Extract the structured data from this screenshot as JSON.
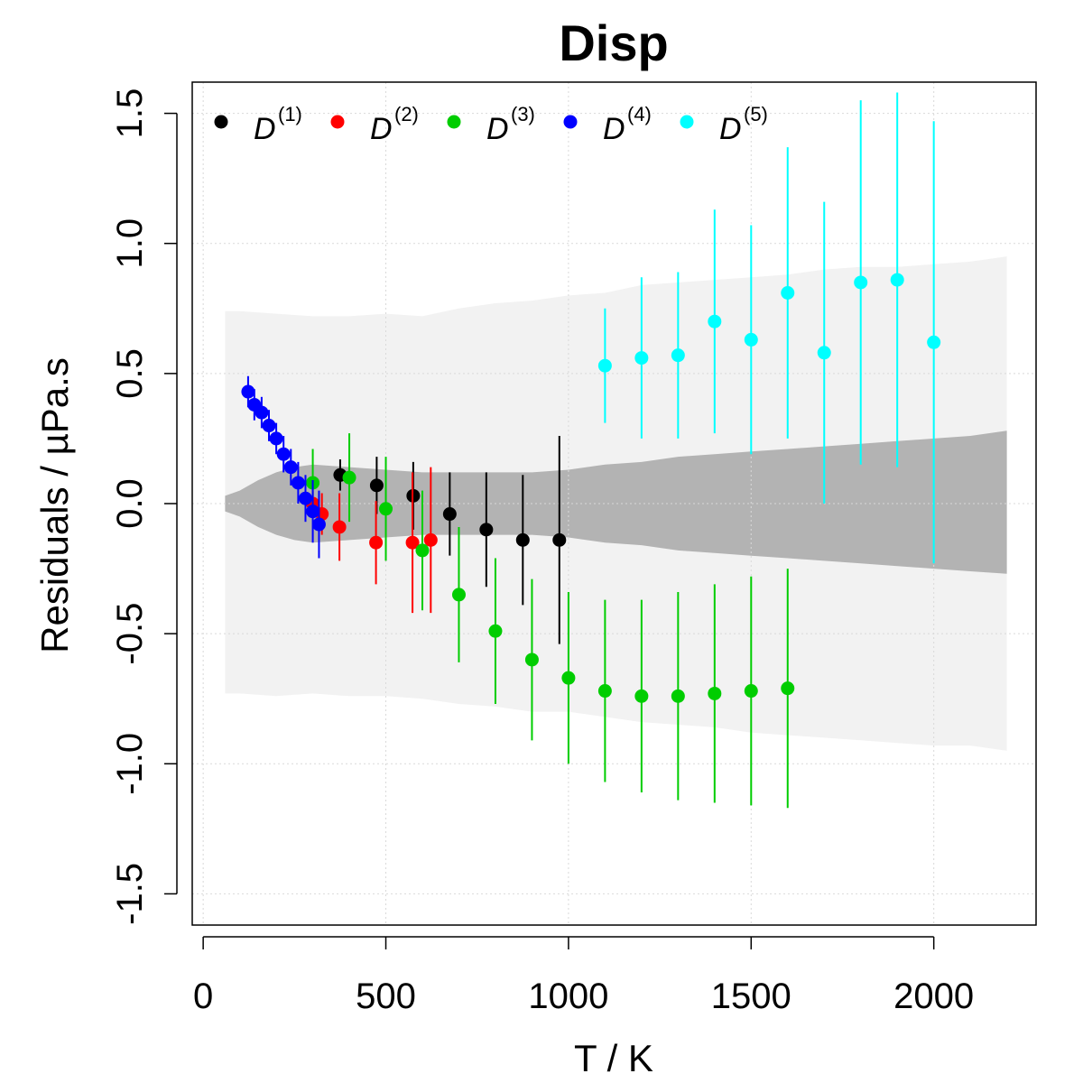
{
  "chart_data": {
    "type": "scatter",
    "title": "Disp",
    "xlabel": "T / K",
    "ylabel": "Residuals / µPa.s",
    "xlim": [
      -30,
      2280
    ],
    "ylim": [
      -1.62,
      1.62
    ],
    "xticks": [
      0,
      500,
      1000,
      1500,
      2000
    ],
    "xtick_labels": [
      "0",
      "500",
      "1000",
      "1500",
      "2000"
    ],
    "yticks": [
      -1.5,
      -1.0,
      -0.5,
      0.0,
      0.5,
      1.0,
      1.5
    ],
    "ytick_labels": [
      "-1.5",
      "-1.0",
      "-0.5",
      "0.0",
      "0.5",
      "1.0",
      "1.5"
    ],
    "grid": true,
    "legend_position": "top-left",
    "bands": {
      "outer": {
        "color": "#f2f2f2",
        "x": [
          60,
          100,
          200,
          300,
          400,
          500,
          600,
          700,
          800,
          900,
          1000,
          1100,
          1200,
          1300,
          1400,
          1500,
          1600,
          1700,
          1800,
          1900,
          2000,
          2100,
          2200
        ],
        "upper": [
          0.74,
          0.74,
          0.73,
          0.72,
          0.72,
          0.73,
          0.72,
          0.75,
          0.77,
          0.78,
          0.8,
          0.81,
          0.84,
          0.85,
          0.86,
          0.87,
          0.88,
          0.9,
          0.91,
          0.91,
          0.92,
          0.93,
          0.95
        ],
        "lower": [
          -0.73,
          -0.73,
          -0.74,
          -0.73,
          -0.74,
          -0.74,
          -0.75,
          -0.77,
          -0.78,
          -0.8,
          -0.8,
          -0.82,
          -0.84,
          -0.85,
          -0.86,
          -0.88,
          -0.89,
          -0.9,
          -0.91,
          -0.92,
          -0.93,
          -0.93,
          -0.95
        ]
      },
      "inner": {
        "color": "#b3b3b3",
        "x": [
          60,
          100,
          150,
          200,
          250,
          300,
          400,
          500,
          600,
          700,
          800,
          900,
          1000,
          1100,
          1200,
          1300,
          1400,
          1500,
          1600,
          1700,
          1800,
          1900,
          2000,
          2100,
          2200
        ],
        "upper": [
          0.03,
          0.05,
          0.09,
          0.12,
          0.14,
          0.15,
          0.14,
          0.13,
          0.12,
          0.12,
          0.12,
          0.12,
          0.13,
          0.15,
          0.16,
          0.18,
          0.19,
          0.2,
          0.21,
          0.22,
          0.23,
          0.24,
          0.25,
          0.26,
          0.28
        ],
        "lower": [
          -0.03,
          -0.05,
          -0.09,
          -0.12,
          -0.14,
          -0.15,
          -0.14,
          -0.13,
          -0.12,
          -0.12,
          -0.12,
          -0.12,
          -0.13,
          -0.15,
          -0.16,
          -0.18,
          -0.19,
          -0.2,
          -0.21,
          -0.22,
          -0.23,
          -0.24,
          -0.25,
          -0.26,
          -0.27
        ]
      }
    },
    "series": [
      {
        "name": "D",
        "sup": "(1)",
        "color": "#000000",
        "points": [
          {
            "x": 375,
            "y": 0.11,
            "err": 0.06
          },
          {
            "x": 475,
            "y": 0.07,
            "err": 0.11
          },
          {
            "x": 575,
            "y": 0.03,
            "err": 0.13
          },
          {
            "x": 675,
            "y": -0.04,
            "err": 0.16
          },
          {
            "x": 775,
            "y": -0.1,
            "err": 0.22
          },
          {
            "x": 875,
            "y": -0.14,
            "err": 0.25
          },
          {
            "x": 975,
            "y": -0.14,
            "err": 0.4
          }
        ]
      },
      {
        "name": "D",
        "sup": "(2)",
        "color": "#ff0000",
        "points": [
          {
            "x": 300,
            "y": 0.0,
            "err": 0.05
          },
          {
            "x": 325,
            "y": -0.04,
            "err": 0.08
          },
          {
            "x": 373,
            "y": -0.09,
            "err": 0.13
          },
          {
            "x": 473,
            "y": -0.15,
            "err": 0.16
          },
          {
            "x": 573,
            "y": -0.15,
            "err": 0.27
          },
          {
            "x": 623,
            "y": -0.14,
            "err": 0.28
          }
        ]
      },
      {
        "name": "D",
        "sup": "(3)",
        "color": "#00cd00",
        "points": [
          {
            "x": 300,
            "y": 0.08,
            "err": 0.13
          },
          {
            "x": 400,
            "y": 0.1,
            "err": 0.17
          },
          {
            "x": 500,
            "y": -0.02,
            "err": 0.2
          },
          {
            "x": 600,
            "y": -0.18,
            "err": 0.23
          },
          {
            "x": 700,
            "y": -0.35,
            "err": 0.26
          },
          {
            "x": 800,
            "y": -0.49,
            "err": 0.28
          },
          {
            "x": 900,
            "y": -0.6,
            "err": 0.31
          },
          {
            "x": 1000,
            "y": -0.67,
            "err": 0.33
          },
          {
            "x": 1100,
            "y": -0.72,
            "err": 0.35
          },
          {
            "x": 1200,
            "y": -0.74,
            "err": 0.37
          },
          {
            "x": 1300,
            "y": -0.74,
            "err": 0.4
          },
          {
            "x": 1400,
            "y": -0.73,
            "err": 0.42
          },
          {
            "x": 1500,
            "y": -0.72,
            "err": 0.44
          },
          {
            "x": 1600,
            "y": -0.71,
            "err": 0.46
          }
        ]
      },
      {
        "name": "D",
        "sup": "(4)",
        "color": "#0000ff",
        "points": [
          {
            "x": 123,
            "y": 0.43,
            "err": 0.06
          },
          {
            "x": 140,
            "y": 0.38,
            "err": 0.06
          },
          {
            "x": 160,
            "y": 0.35,
            "err": 0.06
          },
          {
            "x": 180,
            "y": 0.3,
            "err": 0.06
          },
          {
            "x": 200,
            "y": 0.25,
            "err": 0.06
          },
          {
            "x": 220,
            "y": 0.19,
            "err": 0.07
          },
          {
            "x": 240,
            "y": 0.14,
            "err": 0.07
          },
          {
            "x": 260,
            "y": 0.08,
            "err": 0.08
          },
          {
            "x": 280,
            "y": 0.02,
            "err": 0.09
          },
          {
            "x": 300,
            "y": -0.03,
            "err": 0.12
          },
          {
            "x": 317,
            "y": -0.08,
            "err": 0.13
          }
        ]
      },
      {
        "name": "D",
        "sup": "(5)",
        "color": "#00ffff",
        "points": [
          {
            "x": 1100,
            "y": 0.53,
            "err": 0.22
          },
          {
            "x": 1200,
            "y": 0.56,
            "err": 0.31
          },
          {
            "x": 1300,
            "y": 0.57,
            "err": 0.32
          },
          {
            "x": 1400,
            "y": 0.7,
            "err": 0.43
          },
          {
            "x": 1500,
            "y": 0.63,
            "err": 0.44
          },
          {
            "x": 1600,
            "y": 0.81,
            "err": 0.56
          },
          {
            "x": 1700,
            "y": 0.58,
            "err": 0.58
          },
          {
            "x": 1800,
            "y": 0.85,
            "err": 0.7
          },
          {
            "x": 1900,
            "y": 0.86,
            "err": 0.72
          },
          {
            "x": 2000,
            "y": 0.62,
            "err": 0.85
          }
        ]
      }
    ]
  }
}
